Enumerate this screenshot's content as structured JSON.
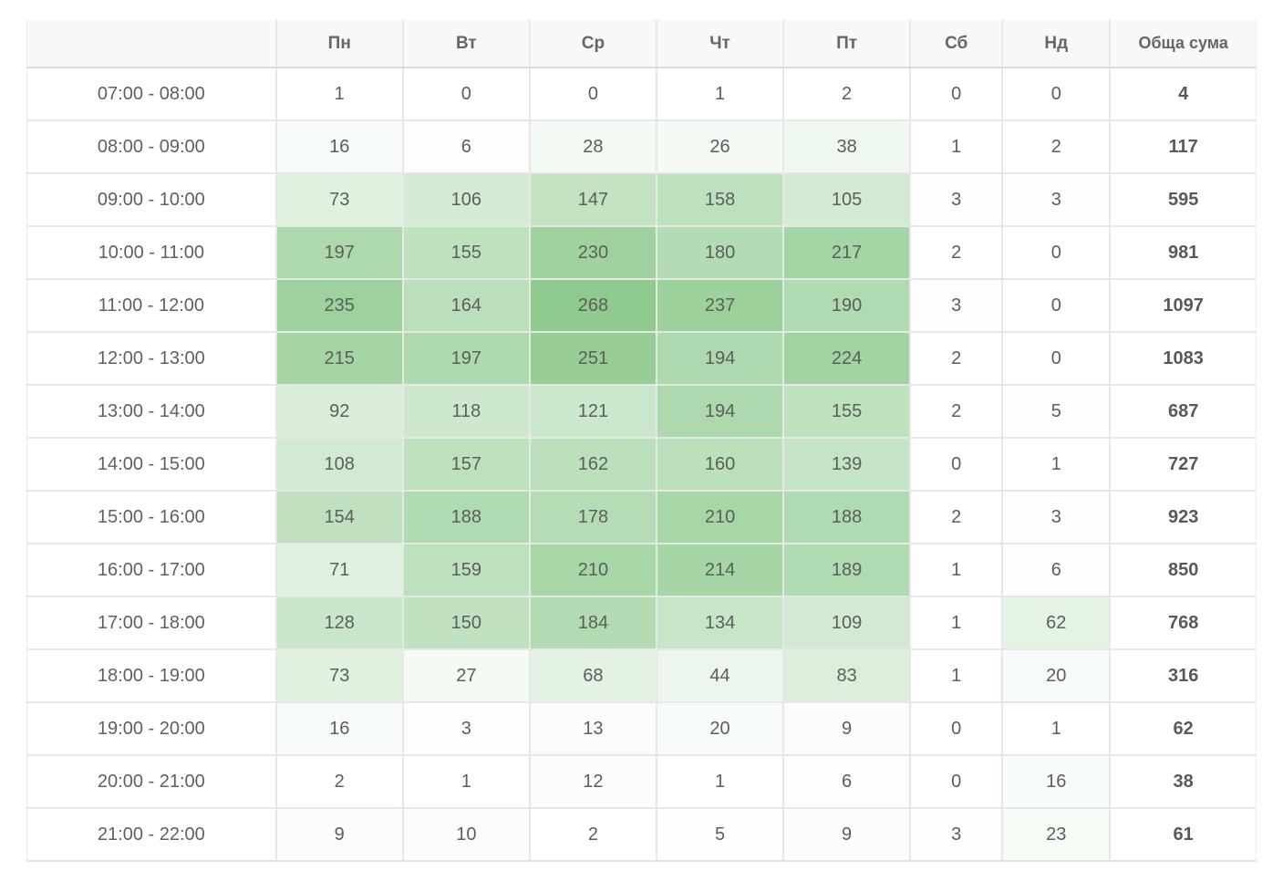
{
  "chart_data": {
    "type": "heatmap",
    "columns": [
      "Пн",
      "Вт",
      "Ср",
      "Чт",
      "Пт",
      "Сб",
      "Нд"
    ],
    "total_header": "Обща сума",
    "rows": [
      {
        "label": "07:00 - 08:00",
        "values": [
          1,
          0,
          0,
          1,
          2,
          0,
          0
        ],
        "total": 4
      },
      {
        "label": "08:00 - 09:00",
        "values": [
          16,
          6,
          28,
          26,
          38,
          1,
          2
        ],
        "total": 117
      },
      {
        "label": "09:00 - 10:00",
        "values": [
          73,
          106,
          147,
          158,
          105,
          3,
          3
        ],
        "total": 595
      },
      {
        "label": "10:00 - 11:00",
        "values": [
          197,
          155,
          230,
          180,
          217,
          2,
          0
        ],
        "total": 981
      },
      {
        "label": "11:00 - 12:00",
        "values": [
          235,
          164,
          268,
          237,
          190,
          3,
          0
        ],
        "total": 1097
      },
      {
        "label": "12:00 - 13:00",
        "values": [
          215,
          197,
          251,
          194,
          224,
          2,
          0
        ],
        "total": 1083
      },
      {
        "label": "13:00 - 14:00",
        "values": [
          92,
          118,
          121,
          194,
          155,
          2,
          5
        ],
        "total": 687
      },
      {
        "label": "14:00 - 15:00",
        "values": [
          108,
          157,
          162,
          160,
          139,
          0,
          1
        ],
        "total": 727
      },
      {
        "label": "15:00 - 16:00",
        "values": [
          154,
          188,
          178,
          210,
          188,
          2,
          3
        ],
        "total": 923
      },
      {
        "label": "16:00 - 17:00",
        "values": [
          71,
          159,
          210,
          214,
          189,
          1,
          6
        ],
        "total": 850
      },
      {
        "label": "17:00 - 18:00",
        "values": [
          128,
          150,
          184,
          134,
          109,
          1,
          62
        ],
        "total": 768
      },
      {
        "label": "18:00 - 19:00",
        "values": [
          73,
          27,
          68,
          44,
          83,
          1,
          20
        ],
        "total": 316
      },
      {
        "label": "19:00 - 20:00",
        "values": [
          16,
          3,
          13,
          20,
          9,
          0,
          1
        ],
        "total": 62
      },
      {
        "label": "20:00 - 21:00",
        "values": [
          2,
          1,
          12,
          1,
          6,
          0,
          16
        ],
        "total": 38
      },
      {
        "label": "21:00 - 22:00",
        "values": [
          9,
          10,
          2,
          5,
          9,
          3,
          23
        ],
        "total": 61
      }
    ],
    "color_scale": {
      "low": "#ffffff",
      "high": "#8fcb8f"
    }
  }
}
